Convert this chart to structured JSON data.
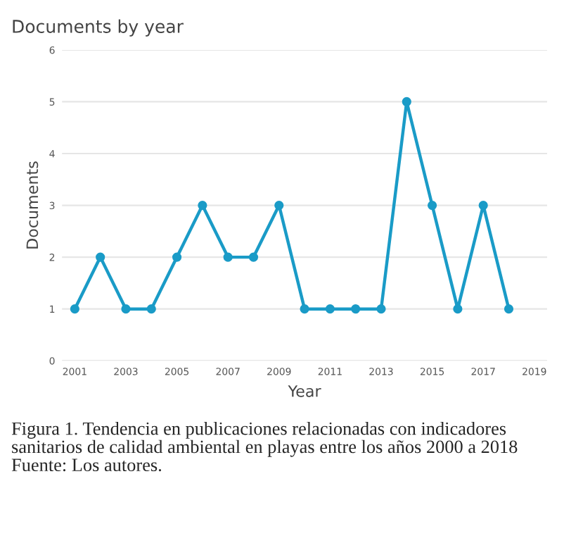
{
  "chart_data": {
    "type": "line",
    "title": "Documents by year",
    "xlabel": "Year",
    "ylabel": "Documents",
    "x": [
      2001,
      2002,
      2003,
      2004,
      2005,
      2006,
      2007,
      2008,
      2009,
      2010,
      2011,
      2012,
      2013,
      2014,
      2015,
      2016,
      2017,
      2018
    ],
    "series": [
      {
        "color": "#1a9bc7",
        "values": [
          1,
          2,
          1,
          1,
          2,
          3,
          2,
          2,
          3,
          1,
          1,
          1,
          1,
          5,
          3,
          1,
          3,
          1
        ]
      }
    ],
    "xlim": [
      2000.5,
      2019.5
    ],
    "xticks": [
      2001,
      2003,
      2005,
      2007,
      2009,
      2011,
      2013,
      2015,
      2017,
      2019
    ],
    "ylim": [
      0,
      6
    ],
    "yticks": [
      0,
      1,
      2,
      3,
      4,
      5,
      6
    ],
    "grid": "y",
    "marker": "circle",
    "line_style": "solid",
    "annotations": [
      "Figura 1. Tendencia en publicaciones relacionadas con indicadores sanitarios de calidad ambiental en playas entre los años 2000 a 2018 Fuente: Los autores."
    ]
  }
}
